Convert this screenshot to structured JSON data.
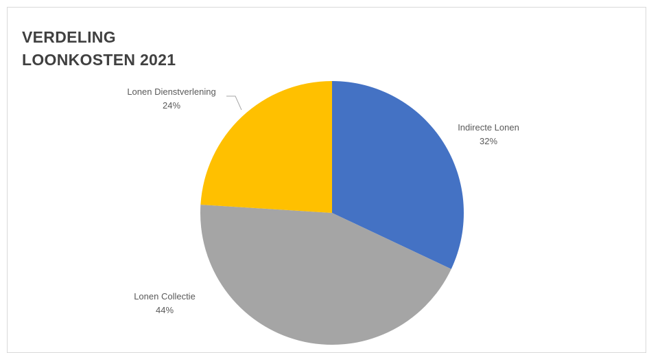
{
  "chart_data": {
    "type": "pie",
    "title": [
      "VERDELING",
      "LOONKOSTEN 2021"
    ],
    "slices": [
      {
        "label": "Indirecte Lonen",
        "value": 32,
        "value_label": "32%",
        "color": "#4472c4"
      },
      {
        "label": "Lonen Collectie",
        "value": 44,
        "value_label": "44%",
        "color": "#a5a5a5"
      },
      {
        "label": "Lonen Dienstverlening",
        "value": 24,
        "value_label": "24%",
        "color": "#ffc000"
      }
    ],
    "start_angle": "12 o'clock",
    "direction": "clockwise",
    "legend": "none"
  }
}
